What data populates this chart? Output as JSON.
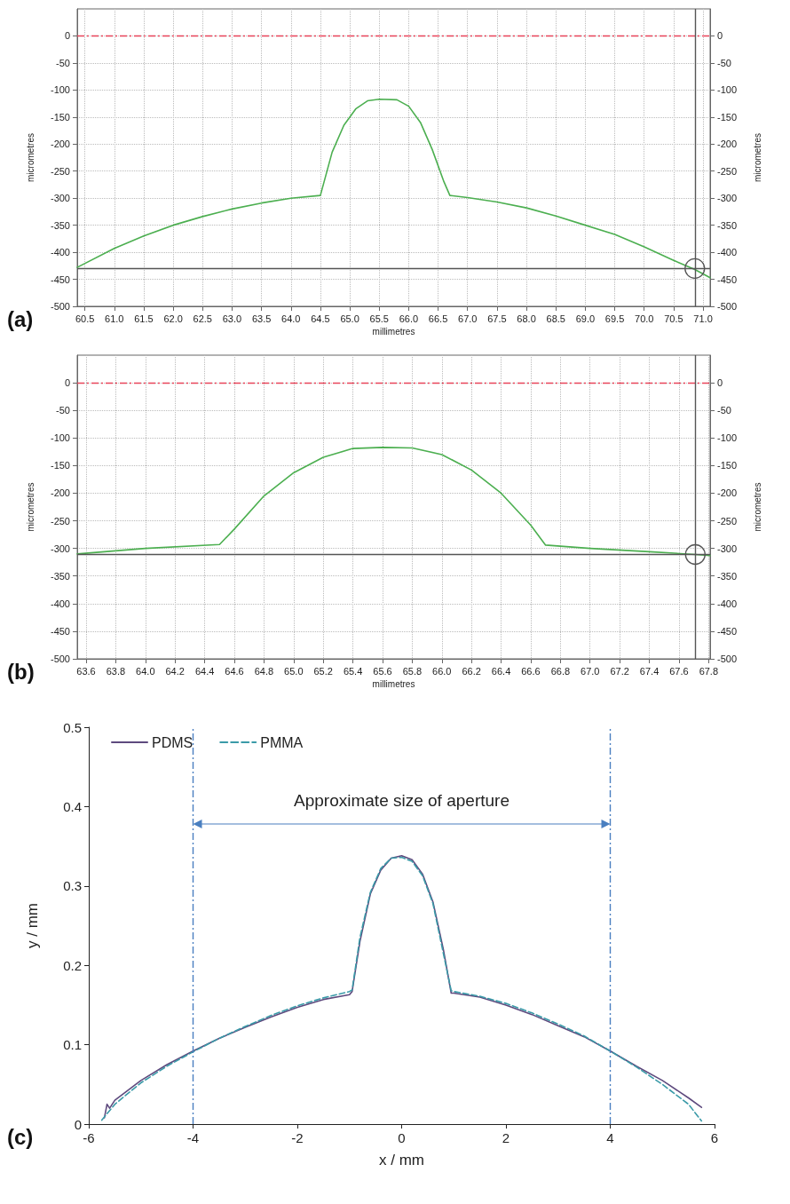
{
  "chart_data": [
    {
      "type": "line",
      "xlabel": "millimetres",
      "ylabel": "micrometres",
      "y2label": "micrometres",
      "annotations": [
        "(a)"
      ],
      "xlim": [
        60.37,
        71.12
      ],
      "ylim": [
        -500,
        50
      ],
      "y2lim": [
        -500,
        50
      ],
      "xticks": [
        60.5,
        {
          "value": 61,
          "label": "61.0"
        },
        61.5,
        {
          "value": 62,
          "label": "62.0"
        },
        62.5,
        {
          "value": 63,
          "label": "63.0"
        },
        63.5,
        {
          "value": 64,
          "label": "64.0"
        },
        64.5,
        {
          "value": 65,
          "label": "65.0"
        },
        65.5,
        {
          "value": 66,
          "label": "66.0"
        },
        66.5,
        {
          "value": 67,
          "label": "67.0"
        },
        67.5,
        {
          "value": 68,
          "label": "68.0"
        },
        68.5,
        {
          "value": 69,
          "label": "69.0"
        },
        69.5,
        {
          "value": 70,
          "label": "70.0"
        },
        70.5,
        {
          "value": 71,
          "label": "71.0"
        }
      ],
      "yticks": [
        0,
        -50,
        -100,
        -150,
        -200,
        -250,
        -300,
        -350,
        -400,
        -450,
        -500
      ],
      "y2ticks": [
        0,
        -50,
        -100,
        -150,
        -200,
        -250,
        -300,
        -350,
        -400,
        -450,
        -500
      ],
      "grid": true,
      "marker": "none",
      "series": [
        {
          "color": "#4caf50",
          "x": [
            60.37,
            61.0,
            61.5,
            62.0,
            62.5,
            63.0,
            63.5,
            64.0,
            64.5,
            64.7,
            64.9,
            65.1,
            65.3,
            65.5,
            65.8,
            66.0,
            66.2,
            66.4,
            66.6,
            66.7,
            67.0,
            67.5,
            68.0,
            68.5,
            69.0,
            69.5,
            70.0,
            70.5,
            70.86,
            71.12
          ],
          "values": [
            -428,
            -393,
            -370,
            -350,
            -334,
            -320,
            -309,
            -300,
            -295,
            -215,
            -165,
            -135,
            -120,
            -117,
            -118,
            -130,
            -160,
            -210,
            -270,
            -295,
            -299,
            -307,
            -318,
            -333,
            -350,
            -367,
            -390,
            -415,
            -432,
            -447
          ]
        }
      ],
      "ref_lines": [
        {
          "axis": "y",
          "value": 0,
          "color": "#e8445a",
          "line_style": "dashdot"
        },
        {
          "axis": "x",
          "value": 70.86,
          "color": "#555555",
          "line_style": "solid"
        },
        {
          "axis": "y",
          "value": -430,
          "color": "#555555",
          "line_style": "solid"
        }
      ]
    },
    {
      "type": "line",
      "xlabel": "millimetres",
      "ylabel": "micrometres",
      "y2label": "micrometres",
      "annotations": [
        "(b)"
      ],
      "xlim": [
        63.54,
        67.81
      ],
      "ylim": [
        -500,
        50
      ],
      "y2lim": [
        -500,
        50
      ],
      "xticks": [
        63.6,
        63.8,
        {
          "value": 64,
          "label": "64.0"
        },
        64.2,
        64.4,
        64.6,
        64.8,
        {
          "value": 65,
          "label": "65.0"
        },
        65.2,
        65.4,
        65.6,
        65.8,
        {
          "value": 66,
          "label": "66.0"
        },
        66.2,
        66.4,
        66.6,
        66.8,
        {
          "value": 67,
          "label": "67.0"
        },
        67.2,
        67.4,
        67.6,
        67.8
      ],
      "yticks": [
        0,
        -50,
        -100,
        -150,
        -200,
        -250,
        -300,
        -350,
        -400,
        -450,
        -500
      ],
      "y2ticks": [
        0,
        -50,
        -100,
        -150,
        -200,
        -250,
        -300,
        -350,
        -400,
        -450,
        -500
      ],
      "grid": true,
      "marker": "none",
      "series": [
        {
          "color": "#4caf50",
          "x": [
            63.54,
            64.0,
            64.5,
            64.6,
            64.8,
            65.0,
            65.2,
            65.4,
            65.6,
            65.8,
            66.0,
            66.2,
            66.4,
            66.6,
            66.7,
            67.0,
            67.4,
            67.71,
            67.81
          ],
          "values": [
            -310,
            -300,
            -293,
            -265,
            -205,
            -163,
            -135,
            -119,
            -117,
            -118,
            -130,
            -158,
            -200,
            -258,
            -294,
            -300,
            -306,
            -311,
            -313
          ]
        }
      ],
      "ref_lines": [
        {
          "axis": "y",
          "value": 0,
          "color": "#e8445a",
          "line_style": "dashdot"
        },
        {
          "axis": "x",
          "value": 67.71,
          "color": "#555555",
          "line_style": "solid"
        },
        {
          "axis": "y",
          "value": -311,
          "color": "#555555",
          "line_style": "solid"
        }
      ]
    },
    {
      "type": "line",
      "xlabel": "x / mm",
      "ylabel": "y / mm",
      "annotations": [
        "(c)",
        "Approximate size of aperture"
      ],
      "xlim": [
        -6,
        6
      ],
      "ylim": [
        0,
        0.5
      ],
      "xticks": [
        -6,
        -4,
        -2,
        0,
        2,
        4,
        6
      ],
      "yticks": [
        0,
        0.1,
        0.2,
        0.3,
        0.4,
        0.5
      ],
      "grid": false,
      "legend": "top left",
      "marker": "none",
      "series": [
        {
          "name": "PDMS",
          "color": "#5e4a7e",
          "line_style": "solid",
          "x": [
            -5.7,
            -5.65,
            -5.6,
            -5.5,
            -5.0,
            -4.5,
            -4.0,
            -3.5,
            -3.0,
            -2.5,
            -2.0,
            -1.5,
            -1.0,
            -0.95,
            -0.8,
            -0.6,
            -0.4,
            -0.2,
            0,
            0.2,
            0.4,
            0.6,
            0.8,
            0.95,
            1.0,
            1.5,
            2.0,
            2.5,
            3.0,
            3.5,
            4.0,
            4.5,
            5.0,
            5.5,
            5.75
          ],
          "values": [
            0.008,
            0.025,
            0.02,
            0.03,
            0.055,
            0.075,
            0.092,
            0.108,
            0.122,
            0.135,
            0.147,
            0.157,
            0.163,
            0.167,
            0.23,
            0.29,
            0.32,
            0.335,
            0.338,
            0.333,
            0.315,
            0.28,
            0.22,
            0.165,
            0.165,
            0.16,
            0.15,
            0.138,
            0.124,
            0.11,
            0.092,
            0.073,
            0.055,
            0.033,
            0.021
          ]
        },
        {
          "name": "PMMA",
          "color": "#3a9aa8",
          "line_style": "dashed",
          "x": [
            -5.75,
            -5.5,
            -5.0,
            -4.5,
            -4.0,
            -3.5,
            -3.0,
            -2.5,
            -2.0,
            -1.5,
            -1.0,
            -0.95,
            -0.8,
            -0.6,
            -0.4,
            -0.2,
            0,
            0.2,
            0.4,
            0.6,
            0.8,
            0.95,
            1.0,
            1.5,
            2.0,
            2.5,
            3.0,
            3.5,
            4.0,
            4.5,
            5.0,
            5.5,
            5.75
          ],
          "values": [
            0.005,
            0.025,
            0.052,
            0.073,
            0.091,
            0.108,
            0.123,
            0.137,
            0.149,
            0.159,
            0.167,
            0.169,
            0.235,
            0.292,
            0.322,
            0.335,
            0.336,
            0.331,
            0.313,
            0.278,
            0.215,
            0.168,
            0.167,
            0.161,
            0.152,
            0.14,
            0.126,
            0.111,
            0.092,
            0.072,
            0.05,
            0.025,
            0.004
          ]
        }
      ],
      "ref_lines": [
        {
          "axis": "x",
          "value": -4,
          "color": "#4a7fc0",
          "line_style": "dashdot"
        },
        {
          "axis": "x",
          "value": 4,
          "color": "#4a7fc0",
          "line_style": "dashdot"
        }
      ]
    }
  ]
}
